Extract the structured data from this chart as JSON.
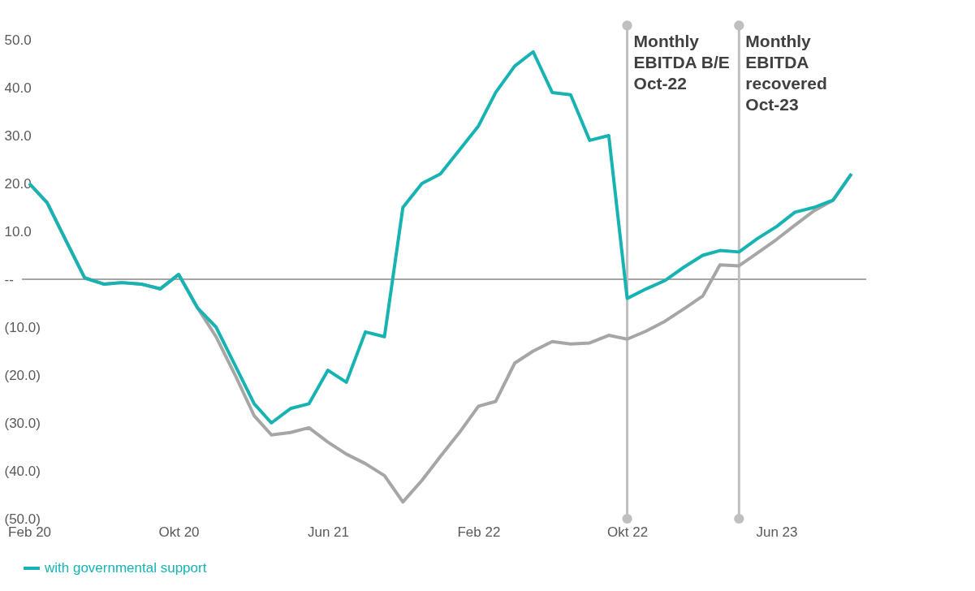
{
  "chart_data": {
    "type": "line",
    "x": [
      "2020-02",
      "2020-03",
      "2020-04",
      "2020-05",
      "2020-06",
      "2020-07",
      "2020-08",
      "2020-09",
      "2020-10",
      "2020-11",
      "2020-12",
      "2021-01",
      "2021-02",
      "2021-03",
      "2021-04",
      "2021-05",
      "2021-06",
      "2021-07",
      "2021-08",
      "2021-09",
      "2021-10",
      "2021-11",
      "2021-12",
      "2022-01",
      "2022-02",
      "2022-03",
      "2022-04",
      "2022-05",
      "2022-06",
      "2022-07",
      "2022-08",
      "2022-09",
      "2022-10",
      "2022-11",
      "2022-12",
      "2023-01",
      "2023-02",
      "2023-03",
      "2023-04",
      "2023-05",
      "2023-06",
      "2023-07",
      "2023-08",
      "2023-09",
      "2023-10"
    ],
    "series": [
      {
        "color": "#a6a6a6",
        "values": [
          20,
          16,
          8,
          0.3,
          -1,
          -0.7,
          -1,
          -2,
          1,
          -6,
          -12,
          -20,
          -28.5,
          -32.5,
          -32,
          -31,
          -34,
          -36.5,
          -38.5,
          -41,
          -46.5,
          -42,
          -37,
          -32,
          -26.5,
          -25.5,
          -17.5,
          -15,
          -13,
          -13.5,
          -13.3,
          -11.7,
          -12.5,
          -10.8,
          -8.8,
          -6.2,
          -3.5,
          3,
          2.8,
          5.5,
          8.3,
          11.3,
          14.3,
          16.5,
          22
        ]
      },
      {
        "name": "with governmental support",
        "color": "#17b3b3",
        "values": [
          20,
          16,
          8,
          0.3,
          -1,
          -0.7,
          -1,
          -2,
          1,
          -6,
          -10,
          -18,
          -26,
          -30,
          -27,
          -26,
          -19,
          -21.5,
          -11,
          -12,
          15,
          20,
          22,
          27,
          32,
          39,
          44.5,
          47.5,
          39,
          38.5,
          29,
          30,
          -4,
          -2,
          -0.3,
          2.5,
          5,
          6,
          5.7,
          8.5,
          11,
          14,
          15,
          16.5,
          22
        ]
      }
    ],
    "xlim": [
      "2020-01-20",
      "2023-10-25"
    ],
    "xticks": [
      {
        "value": "2020-02",
        "label": "Feb 20"
      },
      {
        "value": "2020-10",
        "label": "Okt 20"
      },
      {
        "value": "2021-06",
        "label": "Jun 21"
      },
      {
        "value": "2022-02",
        "label": "Feb 22"
      },
      {
        "value": "2022-10",
        "label": "Okt 22"
      },
      {
        "value": "2023-06",
        "label": "Jun 23"
      }
    ],
    "ylim": [
      -50,
      50
    ],
    "yticks": [
      {
        "value": -50,
        "label": "(50.0)"
      },
      {
        "value": -40,
        "label": "(40.0)"
      },
      {
        "value": -30,
        "label": "(30.0)"
      },
      {
        "value": -20,
        "label": "(20.0)"
      },
      {
        "value": -10,
        "label": "(10.0)"
      },
      {
        "value": 0,
        "label": "--"
      },
      {
        "value": 10,
        "label": "10.0"
      },
      {
        "value": 20,
        "label": "20.0"
      },
      {
        "value": 30,
        "label": "30.0"
      },
      {
        "value": 40,
        "label": "40.0"
      },
      {
        "value": 50,
        "label": "50.0"
      }
    ],
    "ref_lines": [
      {
        "axis": "y",
        "value": 0,
        "color": "#a6a6a6"
      },
      {
        "axis": "x",
        "value": "2022-10",
        "label": "Monthly EBITDA B/E Oct-22",
        "color": "#bfbfbf"
      },
      {
        "axis": "x",
        "value": "2023-04",
        "label": "Monthly EBITDA recovered Oct-23",
        "color": "#bfbfbf"
      }
    ],
    "grid": false,
    "legend": "bottom",
    "marker": "none",
    "line_style": "solid"
  }
}
